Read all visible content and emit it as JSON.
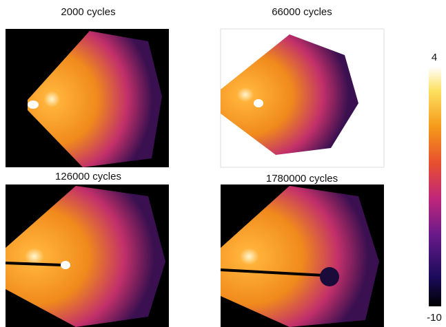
{
  "panels": [
    {
      "title": "2000 cycles"
    },
    {
      "title": "66000 cycles"
    },
    {
      "title": "126000 cycles"
    },
    {
      "title": "1780000 cycles"
    }
  ],
  "colorbar": {
    "max": "4",
    "min": "-10"
  }
}
